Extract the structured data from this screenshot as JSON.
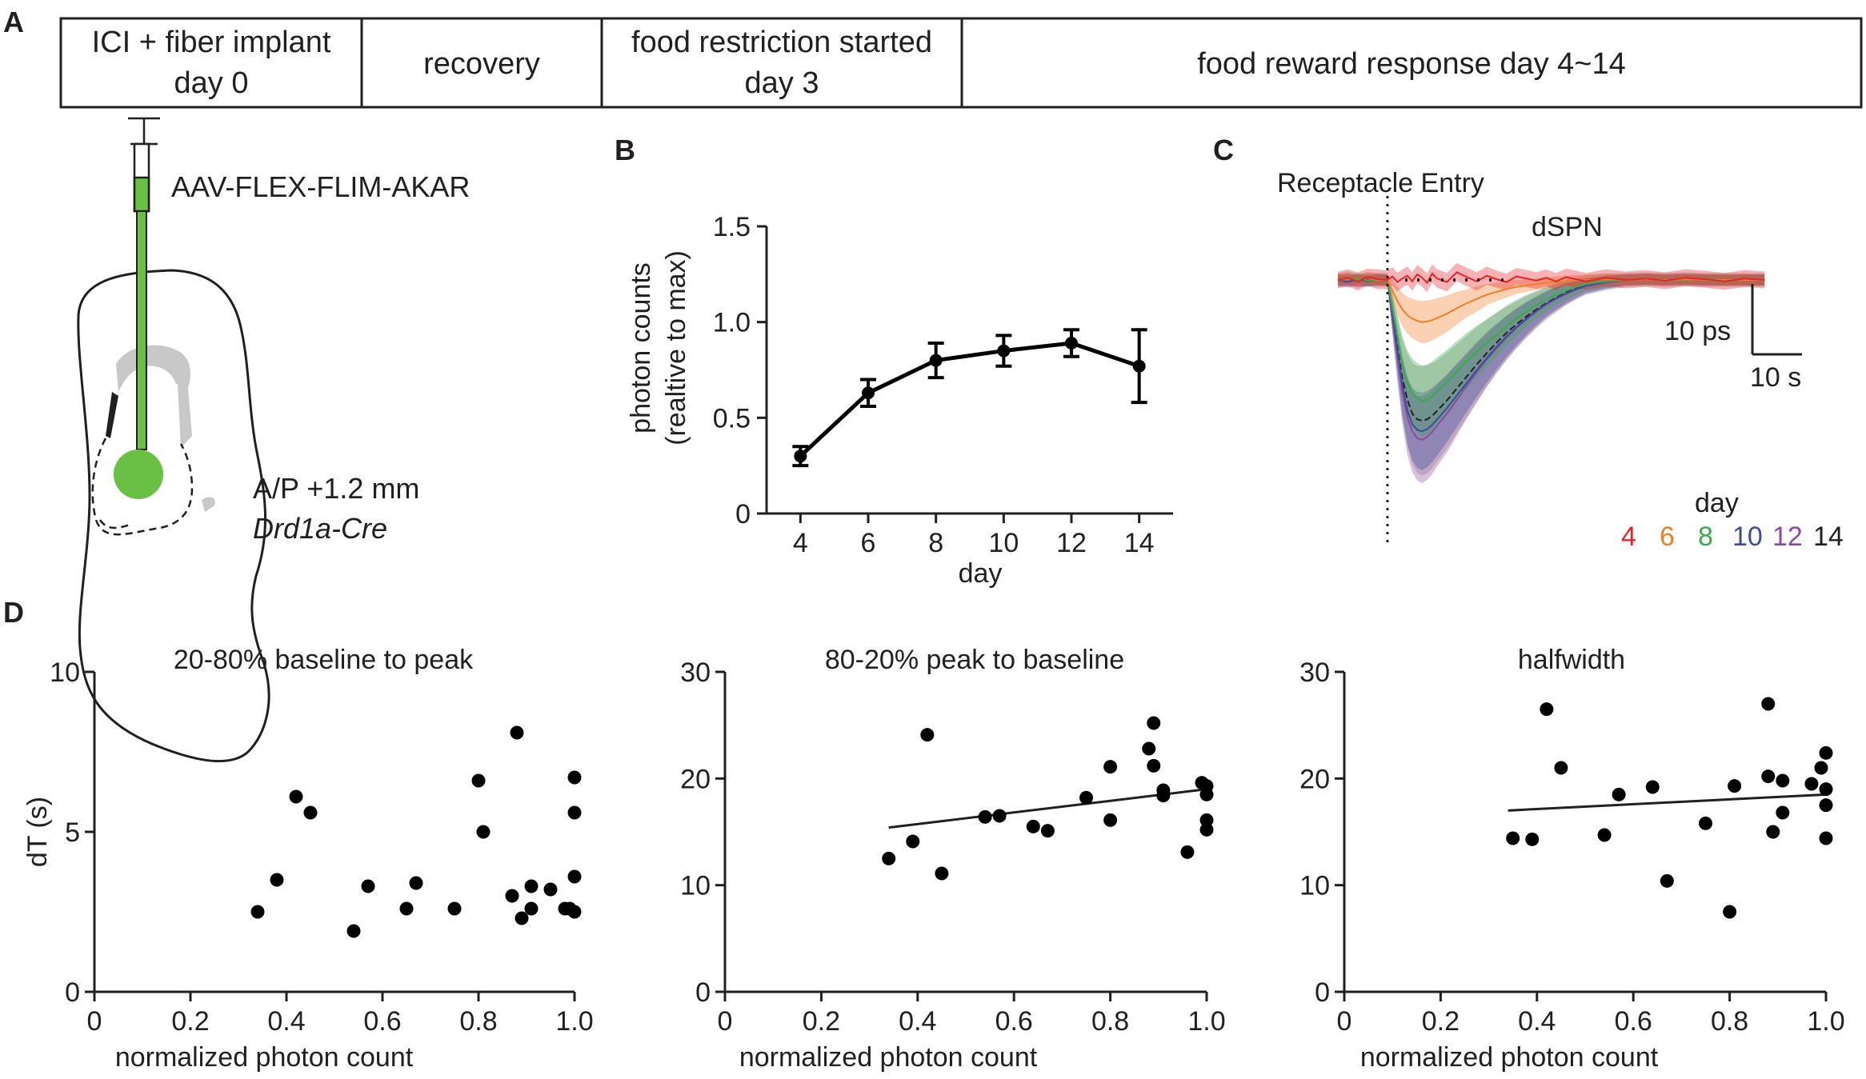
{
  "panel_labels": {
    "a": "A",
    "b": "B",
    "c": "C",
    "d": "D"
  },
  "timeline": {
    "boxes": [
      {
        "line1": "ICI + fiber implant",
        "line2": "day 0"
      },
      {
        "line1": "recovery",
        "line2": ""
      },
      {
        "line1": "food restriction started",
        "line2": "day 3"
      },
      {
        "line1": "food reward response day 4~14",
        "line2": ""
      }
    ]
  },
  "schematic": {
    "virus_label": "AAV-FLEX-FLIM-AKAR",
    "coord_label": "A/P +1.2 mm",
    "genotype_label": "Drd1a-Cre",
    "colors": {
      "fiber": "#6abf45",
      "ventricle": "#c8c8c8",
      "outline": "#231f20"
    }
  },
  "chart_data": [
    {
      "id": "B",
      "type": "line",
      "title": "",
      "xlabel": "day",
      "ylabel_line1": "photon counts",
      "ylabel_line2": "(realtive to max)",
      "x": [
        4,
        6,
        8,
        10,
        12,
        14
      ],
      "y": [
        0.3,
        0.63,
        0.8,
        0.85,
        0.89,
        0.77
      ],
      "err": [
        0.05,
        0.07,
        0.09,
        0.08,
        0.07,
        0.19
      ],
      "xlim": [
        3,
        15
      ],
      "ylim": [
        0,
        1.5
      ],
      "xticks": [
        4,
        6,
        8,
        10,
        12,
        14
      ],
      "xtick_labels": [
        "4",
        "6",
        "8",
        "10",
        "12",
        "14"
      ],
      "yticks": [
        0,
        0.5,
        1.0,
        1.5
      ],
      "ytick_labels": [
        "0",
        "0.5",
        "1.0",
        "1.5"
      ],
      "color": "#000000"
    },
    {
      "id": "C",
      "type": "area",
      "title": "dSPN",
      "event_label": "Receptacle Entry",
      "scalebar_y_label": "10 ps",
      "scalebar_x_label": "10 s",
      "legend_title": "day",
      "x_seconds": [
        -10,
        -8,
        -6,
        -4,
        -2,
        0,
        1,
        2,
        3,
        4,
        5,
        6,
        7,
        8,
        9,
        10,
        12,
        14,
        16,
        18,
        20,
        22,
        24,
        26,
        28,
        30,
        32,
        34,
        36,
        38,
        40,
        44,
        48,
        52,
        56,
        60,
        64,
        68,
        72,
        76
      ],
      "series": [
        {
          "name": "4",
          "color": "#e6222b",
          "values": [
            0,
            0.3,
            -0.2,
            0.4,
            0.1,
            0,
            0.5,
            -0.3,
            0.2,
            0.6,
            -0.2,
            0.8,
            0.3,
            -0.4,
            0.9,
            0.2,
            -0.3,
            1.1,
            0.4,
            -0.2,
            0.6,
            0.1,
            -0.3,
            0.5,
            0.2,
            -0.1,
            0.3,
            -0.2,
            0.4,
            0.1,
            -0.2,
            0.3,
            0,
            0.2,
            -0.1,
            0.3,
            0.1,
            -0.2,
            0.2,
            0
          ],
          "sem": [
            1.2,
            1.2,
            1.3,
            1.2,
            1.4,
            1.3,
            1.3,
            1.3,
            1.3,
            1.3,
            1.3,
            1.3,
            1.3,
            1.3,
            1.3,
            1.3,
            1.3,
            1.3,
            1.3,
            1.3,
            1.3,
            1.2,
            1.2,
            1.2,
            1.2,
            1.2,
            1.2,
            1.2,
            1.2,
            1.2,
            1.2,
            1.2,
            1.2,
            1.2,
            1.2,
            1.2,
            1.2,
            1.2,
            1.2,
            1.2
          ]
        },
        {
          "name": "6",
          "color": "#f07e26",
          "values": [
            0,
            0.2,
            -0.1,
            0.3,
            0,
            0,
            -1.5,
            -3.0,
            -4.2,
            -5.0,
            -5.5,
            -5.8,
            -6.0,
            -5.9,
            -5.7,
            -5.4,
            -4.8,
            -4.0,
            -3.3,
            -2.7,
            -2.1,
            -1.7,
            -1.3,
            -1.0,
            -0.8,
            -0.6,
            -0.4,
            -0.3,
            -0.2,
            -0.1,
            0,
            0.1,
            0,
            0.1,
            0,
            0.1,
            0,
            0,
            0,
            0
          ],
          "sem": [
            0.8,
            0.8,
            0.8,
            0.8,
            0.8,
            0.8,
            1.5,
            2.0,
            2.4,
            2.6,
            2.8,
            2.9,
            3.0,
            3.0,
            2.9,
            2.8,
            2.6,
            2.3,
            2.0,
            1.8,
            1.5,
            1.3,
            1.2,
            1.0,
            0.9,
            0.8,
            0.8,
            0.8,
            0.8,
            0.8,
            0.8,
            0.8,
            0.8,
            0.8,
            0.8,
            0.8,
            0.8,
            0.8,
            0.8,
            0.8
          ]
        },
        {
          "name": "8",
          "color": "#3aab49",
          "values": [
            0,
            0.1,
            0.2,
            -0.1,
            0,
            0,
            -4,
            -8,
            -12,
            -14.5,
            -16,
            -16.8,
            -17.2,
            -17,
            -16.5,
            -15.8,
            -14.5,
            -13,
            -11.5,
            -10.2,
            -9,
            -7.8,
            -6.6,
            -5.5,
            -4.5,
            -3.6,
            -2.8,
            -2.1,
            -1.5,
            -1.0,
            -0.6,
            -0.2,
            0,
            0.1,
            0,
            0,
            0.1,
            0,
            0,
            0
          ],
          "sem": [
            0.7,
            0.7,
            0.7,
            0.7,
            0.7,
            0.7,
            2,
            3,
            4,
            4.5,
            4.8,
            5,
            5,
            5,
            4.9,
            4.8,
            4.6,
            4.3,
            4,
            3.7,
            3.4,
            3.1,
            2.8,
            2.5,
            2.2,
            1.9,
            1.7,
            1.5,
            1.3,
            1.1,
            0.9,
            0.8,
            0.7,
            0.7,
            0.7,
            0.7,
            0.7,
            0.7,
            0.7,
            0.7
          ]
        },
        {
          "name": "10",
          "color": "#3f4aa0",
          "values": [
            0,
            -0.3,
            0.1,
            -0.2,
            0,
            0,
            -5,
            -10,
            -15,
            -18.5,
            -20.5,
            -21.3,
            -21.5,
            -21.2,
            -20.6,
            -19.8,
            -18.2,
            -16.4,
            -14.6,
            -12.8,
            -11.1,
            -9.5,
            -8,
            -6.7,
            -5.5,
            -4.4,
            -3.4,
            -2.6,
            -1.9,
            -1.3,
            -0.8,
            -0.3,
            0,
            0.1,
            0,
            0.1,
            0,
            0,
            0,
            0
          ],
          "sem": [
            0.8,
            0.8,
            0.8,
            0.8,
            0.8,
            0.8,
            2.2,
            3.2,
            4.2,
            4.8,
            5.2,
            5.4,
            5.5,
            5.4,
            5.3,
            5.1,
            4.8,
            4.5,
            4.1,
            3.8,
            3.5,
            3.2,
            2.9,
            2.6,
            2.3,
            2.0,
            1.8,
            1.6,
            1.4,
            1.2,
            1.0,
            0.9,
            0.8,
            0.8,
            0.8,
            0.8,
            0.8,
            0.8,
            0.8,
            0.8
          ]
        },
        {
          "name": "12",
          "color": "#8b4c9e",
          "values": [
            0,
            0.1,
            -0.2,
            0,
            0.1,
            0,
            -5.5,
            -11,
            -16,
            -19.5,
            -21.5,
            -22.5,
            -22.7,
            -22.3,
            -21.6,
            -20.7,
            -19,
            -17,
            -15,
            -13.1,
            -11.3,
            -9.7,
            -8.2,
            -6.8,
            -5.6,
            -4.5,
            -3.5,
            -2.7,
            -2,
            -1.4,
            -0.9,
            -0.4,
            0,
            0.1,
            0,
            0.1,
            0,
            0,
            0,
            0
          ],
          "sem": [
            0.8,
            0.8,
            0.8,
            0.8,
            0.8,
            0.8,
            2.3,
            3.5,
            4.5,
            5.3,
            5.8,
            6,
            6.2,
            6.1,
            6,
            5.8,
            5.5,
            5.1,
            4.7,
            4.3,
            3.9,
            3.5,
            3.1,
            2.8,
            2.5,
            2.2,
            1.9,
            1.7,
            1.5,
            1.3,
            1.1,
            0.9,
            0.8,
            0.8,
            0.8,
            0.8,
            0.8,
            0.8,
            0.8,
            0.8
          ]
        },
        {
          "name": "14",
          "color": "#231f20",
          "values": [
            0,
            0.2,
            -0.1,
            0.1,
            0,
            0,
            -4.5,
            -9.5,
            -14,
            -17,
            -19,
            -19.8,
            -20,
            -19.8,
            -19.3,
            -18.6,
            -17.1,
            -15.4,
            -13.7,
            -12,
            -10.4,
            -8.9,
            -7.5,
            -6.3,
            -5.2,
            -4.2,
            -3.3,
            -2.5,
            -1.8,
            -1.2,
            -0.7,
            -0.3,
            0,
            0.1,
            0,
            0.1,
            0,
            0,
            0,
            0
          ],
          "sem": [
            1.0,
            1.0,
            1.0,
            1.0,
            1.0,
            1.0,
            2.8,
            4.2,
            5.5,
            6.5,
            7.2,
            7.6,
            7.8,
            7.7,
            7.5,
            7.2,
            6.8,
            6.3,
            5.8,
            5.3,
            4.8,
            4.3,
            3.9,
            3.5,
            3.1,
            2.7,
            2.4,
            2.1,
            1.8,
            1.6,
            1.4,
            1.2,
            1.0,
            1.0,
            1.0,
            1.0,
            1.0,
            1.0,
            1.0,
            1.0
          ]
        }
      ]
    },
    {
      "id": "D1",
      "type": "scatter",
      "title": "20-80% baseline to peak",
      "xlabel": "normalized photon count",
      "ylabel": "dT (s)",
      "xlim": [
        0,
        1.0
      ],
      "ylim": [
        0,
        10
      ],
      "xticks": [
        0,
        0.2,
        0.4,
        0.6,
        0.8,
        1.0
      ],
      "xtick_labels": [
        "0",
        "0.2",
        "0.4",
        "0.6",
        "0.8",
        "1.0"
      ],
      "yticks": [
        0,
        5,
        10
      ],
      "ytick_labels": [
        "0",
        "5",
        "10"
      ],
      "points": [
        [
          0.34,
          2.5
        ],
        [
          0.38,
          3.5
        ],
        [
          0.42,
          6.1
        ],
        [
          0.45,
          5.6
        ],
        [
          0.54,
          1.9
        ],
        [
          0.57,
          3.3
        ],
        [
          0.65,
          2.6
        ],
        [
          0.67,
          3.4
        ],
        [
          0.75,
          2.6
        ],
        [
          0.8,
          6.6
        ],
        [
          0.81,
          5.0
        ],
        [
          0.87,
          3.0
        ],
        [
          0.88,
          8.1
        ],
        [
          0.89,
          2.3
        ],
        [
          0.91,
          2.6
        ],
        [
          0.91,
          3.3
        ],
        [
          0.95,
          3.2
        ],
        [
          0.98,
          2.6
        ],
        [
          0.99,
          2.6
        ],
        [
          1.0,
          6.7
        ],
        [
          1.0,
          5.6
        ],
        [
          1.0,
          3.6
        ],
        [
          1.0,
          2.5
        ]
      ],
      "fit": null
    },
    {
      "id": "D2",
      "type": "scatter",
      "title": "80-20% peak to baseline",
      "xlabel": "normalized photon count",
      "ylabel": "",
      "xlim": [
        0,
        1.0
      ],
      "ylim": [
        0,
        30
      ],
      "xticks": [
        0,
        0.2,
        0.4,
        0.6,
        0.8,
        1.0
      ],
      "xtick_labels": [
        "0",
        "0.2",
        "0.4",
        "0.6",
        "0.8",
        "1.0"
      ],
      "yticks": [
        0,
        10,
        20,
        30
      ],
      "ytick_labels": [
        "0",
        "10",
        "20",
        "30"
      ],
      "points": [
        [
          0.34,
          12.5
        ],
        [
          0.39,
          14.1
        ],
        [
          0.42,
          24.1
        ],
        [
          0.45,
          11.1
        ],
        [
          0.54,
          16.4
        ],
        [
          0.57,
          16.5
        ],
        [
          0.64,
          15.5
        ],
        [
          0.67,
          15.1
        ],
        [
          0.75,
          18.2
        ],
        [
          0.8,
          21.1
        ],
        [
          0.8,
          16.1
        ],
        [
          0.88,
          22.8
        ],
        [
          0.89,
          25.2
        ],
        [
          0.89,
          21.2
        ],
        [
          0.91,
          18.9
        ],
        [
          0.91,
          18.4
        ],
        [
          0.96,
          13.1
        ],
        [
          0.99,
          19.6
        ],
        [
          1.0,
          19.3
        ],
        [
          1.0,
          18.5
        ],
        [
          1.0,
          16.1
        ],
        [
          1.0,
          15.2
        ]
      ],
      "fit": {
        "x": [
          0.34,
          1.0
        ],
        "y": [
          15.4,
          19.0
        ]
      }
    },
    {
      "id": "D3",
      "type": "scatter",
      "title": "halfwidth",
      "xlabel": "normalized photon count",
      "ylabel": "",
      "xlim": [
        0,
        1.0
      ],
      "ylim": [
        0,
        30
      ],
      "xticks": [
        0,
        0.2,
        0.4,
        0.6,
        0.8,
        1.0
      ],
      "xtick_labels": [
        "0",
        "0.2",
        "0.4",
        "0.6",
        "0.8",
        "1.0"
      ],
      "yticks": [
        0,
        10,
        20,
        30
      ],
      "ytick_labels": [
        "0",
        "10",
        "20",
        "30"
      ],
      "points": [
        [
          0.35,
          14.4
        ],
        [
          0.39,
          14.3
        ],
        [
          0.42,
          26.5
        ],
        [
          0.45,
          21.0
        ],
        [
          0.54,
          14.7
        ],
        [
          0.57,
          18.5
        ],
        [
          0.64,
          19.2
        ],
        [
          0.67,
          10.4
        ],
        [
          0.75,
          15.8
        ],
        [
          0.8,
          7.5
        ],
        [
          0.81,
          19.3
        ],
        [
          0.88,
          20.2
        ],
        [
          0.88,
          27.0
        ],
        [
          0.89,
          15.0
        ],
        [
          0.91,
          19.8
        ],
        [
          0.91,
          16.8
        ],
        [
          0.97,
          19.5
        ],
        [
          0.99,
          21.0
        ],
        [
          1.0,
          22.4
        ],
        [
          1.0,
          19.0
        ],
        [
          1.0,
          17.5
        ],
        [
          1.0,
          14.4
        ]
      ],
      "fit": {
        "x": [
          0.34,
          1.0
        ],
        "y": [
          17.0,
          18.5
        ]
      }
    }
  ]
}
